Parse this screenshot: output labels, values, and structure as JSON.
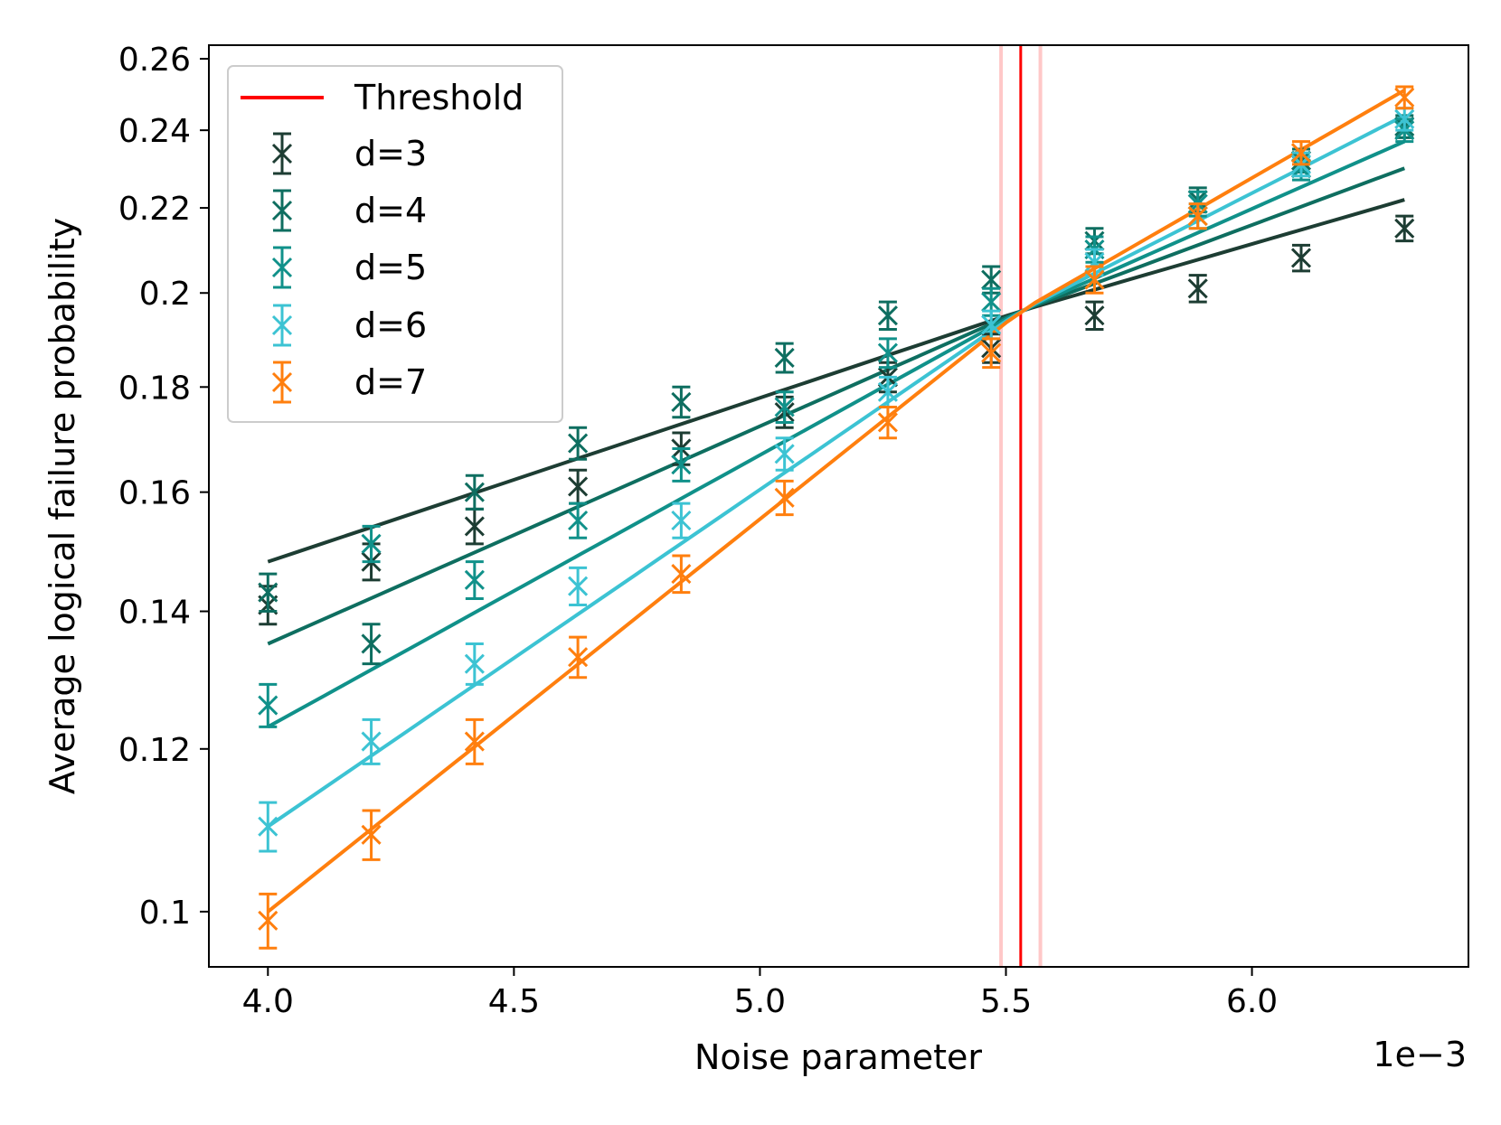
{
  "chart_data": {
    "type": "scatter",
    "xlabel": "Noise parameter",
    "ylabel": "Average logical failure probability",
    "x_offset_label": "1e−3",
    "y_scale": "log",
    "xlim": [
      3.88,
      6.44
    ],
    "ylim": [
      0.094,
      0.264
    ],
    "x_ticks": [
      4.0,
      4.5,
      5.0,
      5.5,
      6.0
    ],
    "x_tick_labels": [
      "4.0",
      "4.5",
      "5.0",
      "5.5",
      "6.0"
    ],
    "y_ticks": [
      0.1,
      0.12,
      0.14,
      0.16,
      0.18,
      0.2,
      0.22,
      0.24,
      0.26
    ],
    "y_tick_labels": [
      "0.1",
      "0.12",
      "0.14",
      "0.16",
      "0.18",
      "0.2",
      "0.22",
      "0.24",
      "0.26"
    ],
    "legend_position": "top-left",
    "threshold": {
      "label": "Threshold",
      "x": 5.53,
      "band": [
        5.49,
        5.57
      ],
      "color": "#ff0000",
      "band_color": "#ffc8c8"
    },
    "x": [
      4.0,
      4.21,
      4.42,
      4.63,
      4.84,
      5.05,
      5.26,
      5.47,
      5.68,
      5.89,
      6.1,
      6.31
    ],
    "fit_range": [
      4.0,
      6.31
    ],
    "series": [
      {
        "name": "d=3",
        "color": "#1d3d33",
        "values": [
          0.141,
          0.148,
          0.154,
          0.161,
          0.168,
          0.175,
          0.182,
          0.188,
          0.195,
          0.201,
          0.208,
          0.215
        ],
        "errors": [
          0.003,
          0.003,
          0.003,
          0.003,
          0.003,
          0.003,
          0.003,
          0.003,
          0.003,
          0.003,
          0.003,
          0.003
        ],
        "fit_start": 0.148,
        "fit_end": 0.222
      },
      {
        "name": "d=4",
        "color": "#0e6e60",
        "values": [
          0.143,
          0.135,
          0.16,
          0.169,
          0.177,
          0.186,
          0.195,
          0.203,
          0.212,
          0.222,
          0.232,
          0.241
        ],
        "errors": [
          0.003,
          0.003,
          0.003,
          0.003,
          0.003,
          0.003,
          0.003,
          0.003,
          0.003,
          0.003,
          0.003,
          0.003
        ],
        "fit_start": 0.135,
        "fit_end": 0.23
      },
      {
        "name": "d=5",
        "color": "#10918a",
        "values": [
          0.126,
          0.151,
          0.145,
          0.155,
          0.165,
          0.176,
          0.187,
          0.198,
          0.21,
          0.221,
          0.23,
          0.24
        ],
        "errors": [
          0.003,
          0.003,
          0.003,
          0.003,
          0.003,
          0.003,
          0.003,
          0.003,
          0.003,
          0.003,
          0.003,
          0.003
        ],
        "fit_start": 0.123,
        "fit_end": 0.237
      },
      {
        "name": "d=6",
        "color": "#3cc3d3",
        "values": [
          0.11,
          0.121,
          0.132,
          0.144,
          0.155,
          0.167,
          0.179,
          0.193,
          0.207,
          0.218,
          0.231,
          0.243
        ],
        "errors": [
          0.003,
          0.003,
          0.003,
          0.003,
          0.003,
          0.003,
          0.003,
          0.003,
          0.003,
          0.003,
          0.003,
          0.003
        ],
        "fit_start": 0.11,
        "fit_end": 0.244
      },
      {
        "name": "d=7",
        "color": "#ff7f0e",
        "values": [
          0.099,
          0.109,
          0.121,
          0.133,
          0.146,
          0.159,
          0.173,
          0.187,
          0.203,
          0.218,
          0.234,
          0.249
        ],
        "errors": [
          0.003,
          0.003,
          0.003,
          0.003,
          0.003,
          0.003,
          0.003,
          0.003,
          0.003,
          0.003,
          0.003,
          0.003
        ],
        "fit_start": 0.1,
        "fit_end": 0.251
      }
    ]
  }
}
